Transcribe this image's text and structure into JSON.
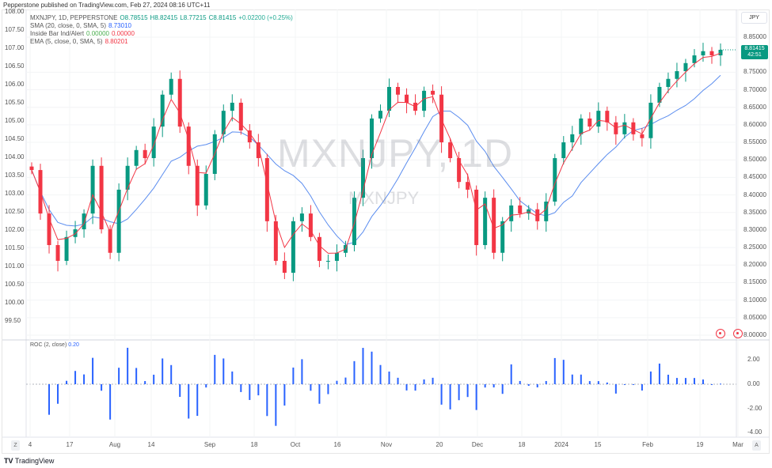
{
  "caption": "Pepperstone published on TradingView.com, Feb 27, 2024 08:16 UTC+11",
  "legend": {
    "symbol": "MXNJPY, 1D, PEPPERSTONE",
    "open": "O8.78515",
    "high": "H8.82415",
    "low": "L8.77215",
    "close": "C8.81415",
    "change": "+0.02200 (+0.25%)",
    "sma_label": "SMA (20, close, 0, SMA, 5)",
    "sma_value": "8.73010",
    "inside_label": "Inside Bar Ind/Alert",
    "inside_v1": "0.00000",
    "inside_v2": "0.00000",
    "ema_label": "EMA (5, close, 0, SMA, 5)",
    "ema_value": "8.80201"
  },
  "currency_button": "JPY",
  "price_tag": {
    "price": "8.81415",
    "countdown": "42:51"
  },
  "watermark": {
    "large": "MXNJPY, 1D",
    "small": "MXNJPY"
  },
  "roc_legend": {
    "label": "ROC (2, close)",
    "value": "0.20"
  },
  "left_axis": [
    "108.00",
    "107.50",
    "107.00",
    "106.50",
    "106.00",
    "105.50",
    "105.00",
    "104.50",
    "104.00",
    "103.50",
    "103.00",
    "102.50",
    "102.00",
    "101.50",
    "101.00",
    "100.50",
    "100.00",
    "99.50"
  ],
  "right_axis": [
    "8.85000",
    "8.75000",
    "8.70000",
    "8.65000",
    "8.60000",
    "8.55000",
    "8.50000",
    "8.45000",
    "8.40000",
    "8.35000",
    "8.30000",
    "8.25000",
    "8.20000",
    "8.15000",
    "8.10000",
    "8.05000",
    "8.00000"
  ],
  "roc_axis": [
    "2.00",
    "0.00",
    "-2.00",
    "-4.00"
  ],
  "time_axis": [
    "4",
    "17",
    "Aug",
    "14",
    "Sep",
    "18",
    "Oct",
    "16",
    "Nov",
    "20",
    "Dec",
    "18",
    "2024",
    "15",
    "Feb",
    "19",
    "Mar"
  ],
  "brand": "TradingView",
  "colors": {
    "up": "#089981",
    "down": "#f23645",
    "sma": "#5b8def",
    "ema": "#f23645",
    "roc": "#2962ff"
  },
  "chart_data": {
    "type": "candlestick",
    "ylim": [
      8.0,
      8.85
    ],
    "closes": [
      8.471,
      8.347,
      8.257,
      8.212,
      8.28,
      8.302,
      8.347,
      8.483,
      8.302,
      8.235,
      8.415,
      8.483,
      8.528,
      8.505,
      8.595,
      8.686,
      8.731,
      8.595,
      8.483,
      8.37,
      8.46,
      8.573,
      8.64,
      8.663,
      8.584,
      8.55,
      8.505,
      8.325,
      8.212,
      8.178,
      8.325,
      8.347,
      8.28,
      8.212,
      8.212,
      8.235,
      8.257,
      8.392,
      8.505,
      8.618,
      8.64,
      8.708,
      8.686,
      8.663,
      8.64,
      8.697,
      8.686,
      8.55,
      8.505,
      8.437,
      8.415,
      8.257,
      8.392,
      8.235,
      8.325,
      8.37,
      8.347,
      8.359,
      8.325,
      8.381,
      8.505,
      8.55,
      8.573,
      8.618,
      8.595,
      8.64,
      8.607,
      8.573,
      8.607,
      8.573,
      8.562,
      8.663,
      8.708,
      8.731,
      8.753,
      8.776,
      8.798,
      8.81,
      8.798,
      8.814
    ]
  }
}
